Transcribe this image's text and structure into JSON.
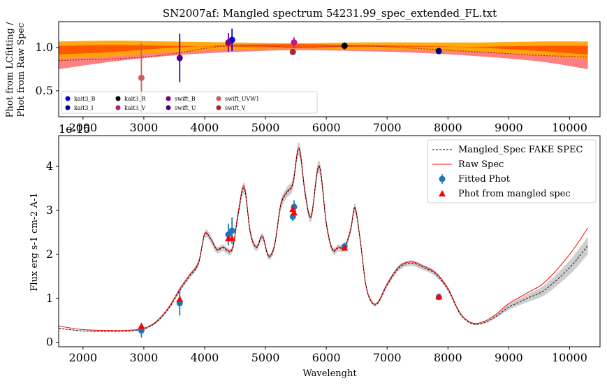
{
  "top": {
    "title": "SN2007af: Mangled spectrum 54231.99_spec_extended_FL.txt",
    "ylabel_line1": "Phot from LCfitting /",
    "ylabel_line2": "Phot from Raw Spec",
    "offset_text": "1e-15",
    "y_ticks": [
      "0.5",
      "1.0"
    ],
    "x_ticks": [
      "2000",
      "3000",
      "4000",
      "5000",
      "6000",
      "7000",
      "8000",
      "9000",
      "10000"
    ],
    "legend": [
      {
        "label": "kait3_B",
        "color": "#0000ee"
      },
      {
        "label": "kait3_I",
        "color": "#00008b"
      },
      {
        "label": "kait3_R",
        "color": "#000000"
      },
      {
        "label": "kait3_V",
        "color": "#c71585"
      },
      {
        "label": "swift_B",
        "color": "#800080"
      },
      {
        "label": "swift_U",
        "color": "#4b0082"
      },
      {
        "label": "swift_UVW1",
        "color": "#cd5c5c"
      },
      {
        "label": "swift_V",
        "color": "#a52a2a"
      }
    ]
  },
  "bottom": {
    "ylabel": "Flux erg s-1 cm-2 A-1",
    "xlabel": "Wavelenght",
    "y_ticks": [
      "0",
      "1",
      "2",
      "3",
      "4"
    ],
    "x_ticks": [
      "2000",
      "3000",
      "4000",
      "5000",
      "6000",
      "7000",
      "8000",
      "9000",
      "10000"
    ],
    "legend": [
      {
        "label": "Mangled_Spec FAKE SPEC"
      },
      {
        "label": "Raw Spec"
      },
      {
        "label": "Fitted Phot"
      },
      {
        "label": "Phot from mangled spec"
      }
    ]
  },
  "colors": {
    "band_orange": "#ffa500",
    "band_red": "#ff4500",
    "band_lightred": "#ff6a6a",
    "raw_spec": "#ff0000",
    "mangled": "#000000",
    "fitted_phot": "#1f77b4",
    "phot_mangled": "#ff0000",
    "spec_band": "#c8c8c8"
  },
  "chart_data": [
    {
      "type": "scatter",
      "title": "SN2007af: Mangled spectrum 54231.99_spec_extended_FL.txt",
      "ylabel": "Phot from LCfitting / Phot from Raw Spec",
      "xlim": [
        1600,
        10500
      ],
      "ylim": [
        0.2,
        1.3
      ],
      "legend_position": "lower-left",
      "series": [
        {
          "name": "kait3_B",
          "points": [
            {
              "x": 4450,
              "y": 1.09,
              "err": 0.13
            }
          ]
        },
        {
          "name": "kait3_I",
          "points": [
            {
              "x": 7850,
              "y": 0.96,
              "err": 0.02
            }
          ]
        },
        {
          "name": "kait3_R",
          "points": [
            {
              "x": 6300,
              "y": 1.02,
              "err": 0.04
            }
          ]
        },
        {
          "name": "kait3_V",
          "points": [
            {
              "x": 5470,
              "y": 1.06,
              "err": 0.06
            }
          ]
        },
        {
          "name": "swift_B",
          "points": [
            {
              "x": 4390,
              "y": 1.06,
              "err": 0.11
            }
          ]
        },
        {
          "name": "swift_U",
          "points": [
            {
              "x": 3590,
              "y": 0.88,
              "err": 0.28
            }
          ]
        },
        {
          "name": "swift_UVW1",
          "points": [
            {
              "x": 2960,
              "y": 0.65,
              "err": 0.4
            }
          ]
        },
        {
          "name": "swift_V",
          "points": [
            {
              "x": 5450,
              "y": 0.95,
              "err": 0.03
            }
          ]
        }
      ],
      "band_orange_x": [
        1600,
        2500,
        3500,
        4500,
        5500,
        6500,
        7500,
        8500,
        9500,
        10300
      ],
      "band_orange_hi": [
        1.07,
        1.08,
        1.07,
        1.06,
        1.05,
        1.06,
        1.06,
        1.06,
        1.07,
        1.07
      ],
      "band_orange_lo": [
        0.87,
        0.9,
        0.95,
        0.98,
        0.99,
        0.98,
        0.97,
        0.95,
        0.91,
        0.87
      ],
      "ratio_curve_x": [
        1600,
        2000,
        2500,
        3000,
        3500,
        4000,
        4500,
        5000,
        5500,
        6000,
        6500,
        7000,
        7500,
        8000,
        8500,
        9000,
        9500,
        10300
      ],
      "ratio_curve_y": [
        0.85,
        0.86,
        0.87,
        0.89,
        0.93,
        0.99,
        1.03,
        1.02,
        1.0,
        1.01,
        1.02,
        1.01,
        0.99,
        0.97,
        0.95,
        0.93,
        0.91,
        0.89
      ]
    },
    {
      "type": "line",
      "ylabel": "Flux erg s-1 cm-2 A-1",
      "xlabel": "Wavelenght",
      "xlim": [
        1600,
        10500
      ],
      "ylim": [
        -0.1,
        4.7
      ],
      "y_scale_note": "1e-15",
      "legend_position": "top-right",
      "x": [
        1600,
        2000,
        2500,
        2800,
        3000,
        3200,
        3400,
        3600,
        3750,
        3900,
        4000,
        4100,
        4200,
        4300,
        4450,
        4550,
        4650,
        4750,
        4850,
        4950,
        5050,
        5150,
        5250,
        5350,
        5450,
        5550,
        5650,
        5750,
        5880,
        6000,
        6100,
        6200,
        6300,
        6400,
        6470,
        6550,
        6650,
        6750,
        6850,
        7000,
        7200,
        7400,
        7600,
        7800,
        8000,
        8200,
        8400,
        8600,
        8800,
        9000,
        9300,
        9600,
        10000,
        10300
      ],
      "series": [
        {
          "name": "Mangled_Spec FAKE SPEC",
          "y": [
            0.32,
            0.26,
            0.25,
            0.26,
            0.3,
            0.45,
            0.75,
            1.2,
            1.5,
            1.8,
            2.45,
            2.35,
            2.1,
            2.15,
            2.1,
            2.9,
            3.5,
            2.5,
            2.15,
            2.4,
            1.95,
            2.2,
            3.1,
            3.4,
            3.6,
            4.4,
            3.4,
            2.85,
            4.0,
            2.7,
            2.1,
            2.15,
            2.15,
            2.55,
            3.05,
            2.4,
            1.3,
            0.9,
            0.9,
            1.3,
            1.7,
            1.8,
            1.7,
            1.55,
            1.2,
            0.65,
            0.42,
            0.45,
            0.6,
            0.8,
            1.0,
            1.2,
            1.7,
            2.2
          ]
        },
        {
          "name": "Raw Spec",
          "y": [
            0.37,
            0.29,
            0.27,
            0.28,
            0.32,
            0.47,
            0.78,
            1.24,
            1.53,
            1.83,
            2.47,
            2.35,
            2.12,
            2.17,
            2.12,
            2.95,
            3.55,
            2.52,
            2.17,
            2.42,
            1.97,
            2.22,
            3.13,
            3.42,
            3.62,
            4.42,
            3.42,
            2.87,
            4.02,
            2.72,
            2.12,
            2.17,
            2.17,
            2.57,
            3.07,
            2.42,
            1.32,
            0.92,
            0.92,
            1.33,
            1.73,
            1.83,
            1.73,
            1.58,
            1.23,
            0.67,
            0.44,
            0.48,
            0.65,
            0.88,
            1.12,
            1.38,
            2.0,
            2.6
          ]
        },
        {
          "name": "Fitted Phot",
          "points": [
            {
              "x": 2960,
              "y": 0.27,
              "err": 0.16
            },
            {
              "x": 3590,
              "y": 0.89,
              "err": 0.28
            },
            {
              "x": 4390,
              "y": 2.45,
              "err": 0.25
            },
            {
              "x": 4450,
              "y": 2.54,
              "err": 0.3
            },
            {
              "x": 5450,
              "y": 2.86,
              "err": 0.1
            },
            {
              "x": 5470,
              "y": 3.08,
              "err": 0.15
            },
            {
              "x": 6300,
              "y": 2.18,
              "err": 0.08
            },
            {
              "x": 7850,
              "y": 1.03,
              "err": 0.02
            }
          ]
        },
        {
          "name": "Phot from mangled spec",
          "points": [
            {
              "x": 2960,
              "y": 0.37
            },
            {
              "x": 3590,
              "y": 0.98
            },
            {
              "x": 4390,
              "y": 2.36
            },
            {
              "x": 4450,
              "y": 2.36
            },
            {
              "x": 5450,
              "y": 3.03
            },
            {
              "x": 5470,
              "y": 2.95
            },
            {
              "x": 6300,
              "y": 2.15
            },
            {
              "x": 7850,
              "y": 1.04
            }
          ]
        }
      ]
    }
  ]
}
